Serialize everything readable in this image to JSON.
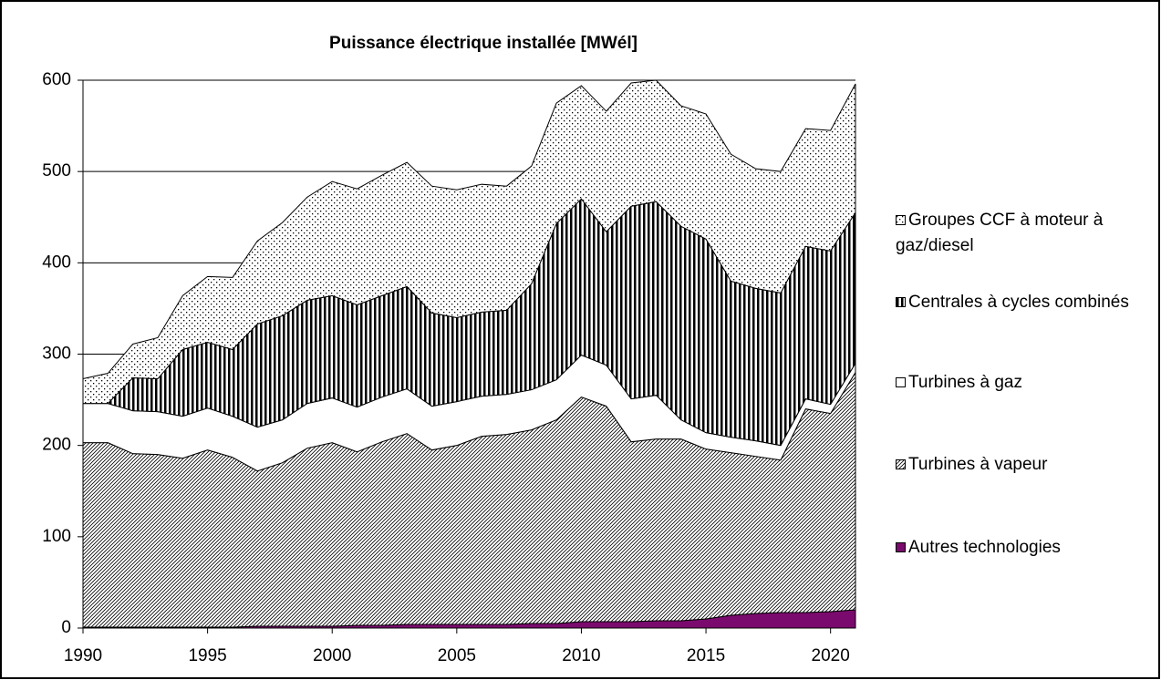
{
  "chart_data": {
    "type": "stacked-area",
    "title": "Puissance électrique installée  [MWél]",
    "x": [
      1990,
      1991,
      1992,
      1993,
      1994,
      1995,
      1996,
      1997,
      1998,
      1999,
      2000,
      2001,
      2002,
      2003,
      2004,
      2005,
      2006,
      2007,
      2008,
      2009,
      2010,
      2011,
      2012,
      2013,
      2014,
      2015,
      2016,
      2017,
      2018,
      2019,
      2020,
      2021
    ],
    "xlim": [
      1990,
      2021
    ],
    "xticks": [
      1990,
      1995,
      2000,
      2005,
      2010,
      2015,
      2020
    ],
    "ylim": [
      0,
      600
    ],
    "yticks": [
      0,
      100,
      200,
      300,
      400,
      500,
      600
    ],
    "grid": true,
    "legend": "right",
    "series": [
      {
        "name": "Autres technologies",
        "color": "#7a0a6d",
        "pattern": "solid",
        "values": [
          1,
          1,
          1,
          1,
          1,
          1,
          1,
          2,
          2,
          2,
          2,
          3,
          3,
          4,
          4,
          4,
          4,
          4,
          5,
          5,
          7,
          7,
          7,
          8,
          8,
          10,
          14,
          16,
          17,
          17,
          18,
          20
        ]
      },
      {
        "name": "Turbines à vapeur",
        "color": "#000000",
        "pattern": "diagonal-hatch",
        "values": [
          202,
          202,
          190,
          189,
          185,
          194,
          186,
          170,
          179,
          195,
          201,
          190,
          201,
          209,
          191,
          196,
          206,
          208,
          212,
          223,
          246,
          236,
          197,
          199,
          199,
          186,
          178,
          172,
          167,
          223,
          217,
          260
        ]
      },
      {
        "name": "Turbines à gaz",
        "color": "#ffffff",
        "pattern": "solid",
        "values": [
          43,
          43,
          47,
          47,
          46,
          46,
          45,
          48,
          47,
          49,
          49,
          49,
          49,
          49,
          48,
          48,
          44,
          44,
          44,
          44,
          46,
          45,
          47,
          48,
          21,
          18,
          17,
          17,
          16,
          11,
          10,
          10
        ]
      },
      {
        "name": "Centrales à cycles combinés",
        "color": "#000000",
        "pattern": "vertical-stripes",
        "values": [
          0,
          0,
          36,
          36,
          73,
          72,
          73,
          113,
          114,
          113,
          112,
          112,
          111,
          112,
          102,
          92,
          92,
          92,
          116,
          171,
          171,
          146,
          211,
          212,
          212,
          212,
          171,
          167,
          167,
          167,
          168,
          165
        ]
      },
      {
        "name": "Groupes CCF à moteur à gaz/diesel",
        "color": "#000000",
        "pattern": "dots",
        "values": [
          27,
          33,
          37,
          45,
          59,
          72,
          79,
          91,
          102,
          113,
          125,
          127,
          132,
          136,
          139,
          140,
          140,
          136,
          129,
          132,
          124,
          132,
          135,
          133,
          132,
          137,
          139,
          131,
          133,
          129,
          132,
          141
        ]
      }
    ]
  }
}
